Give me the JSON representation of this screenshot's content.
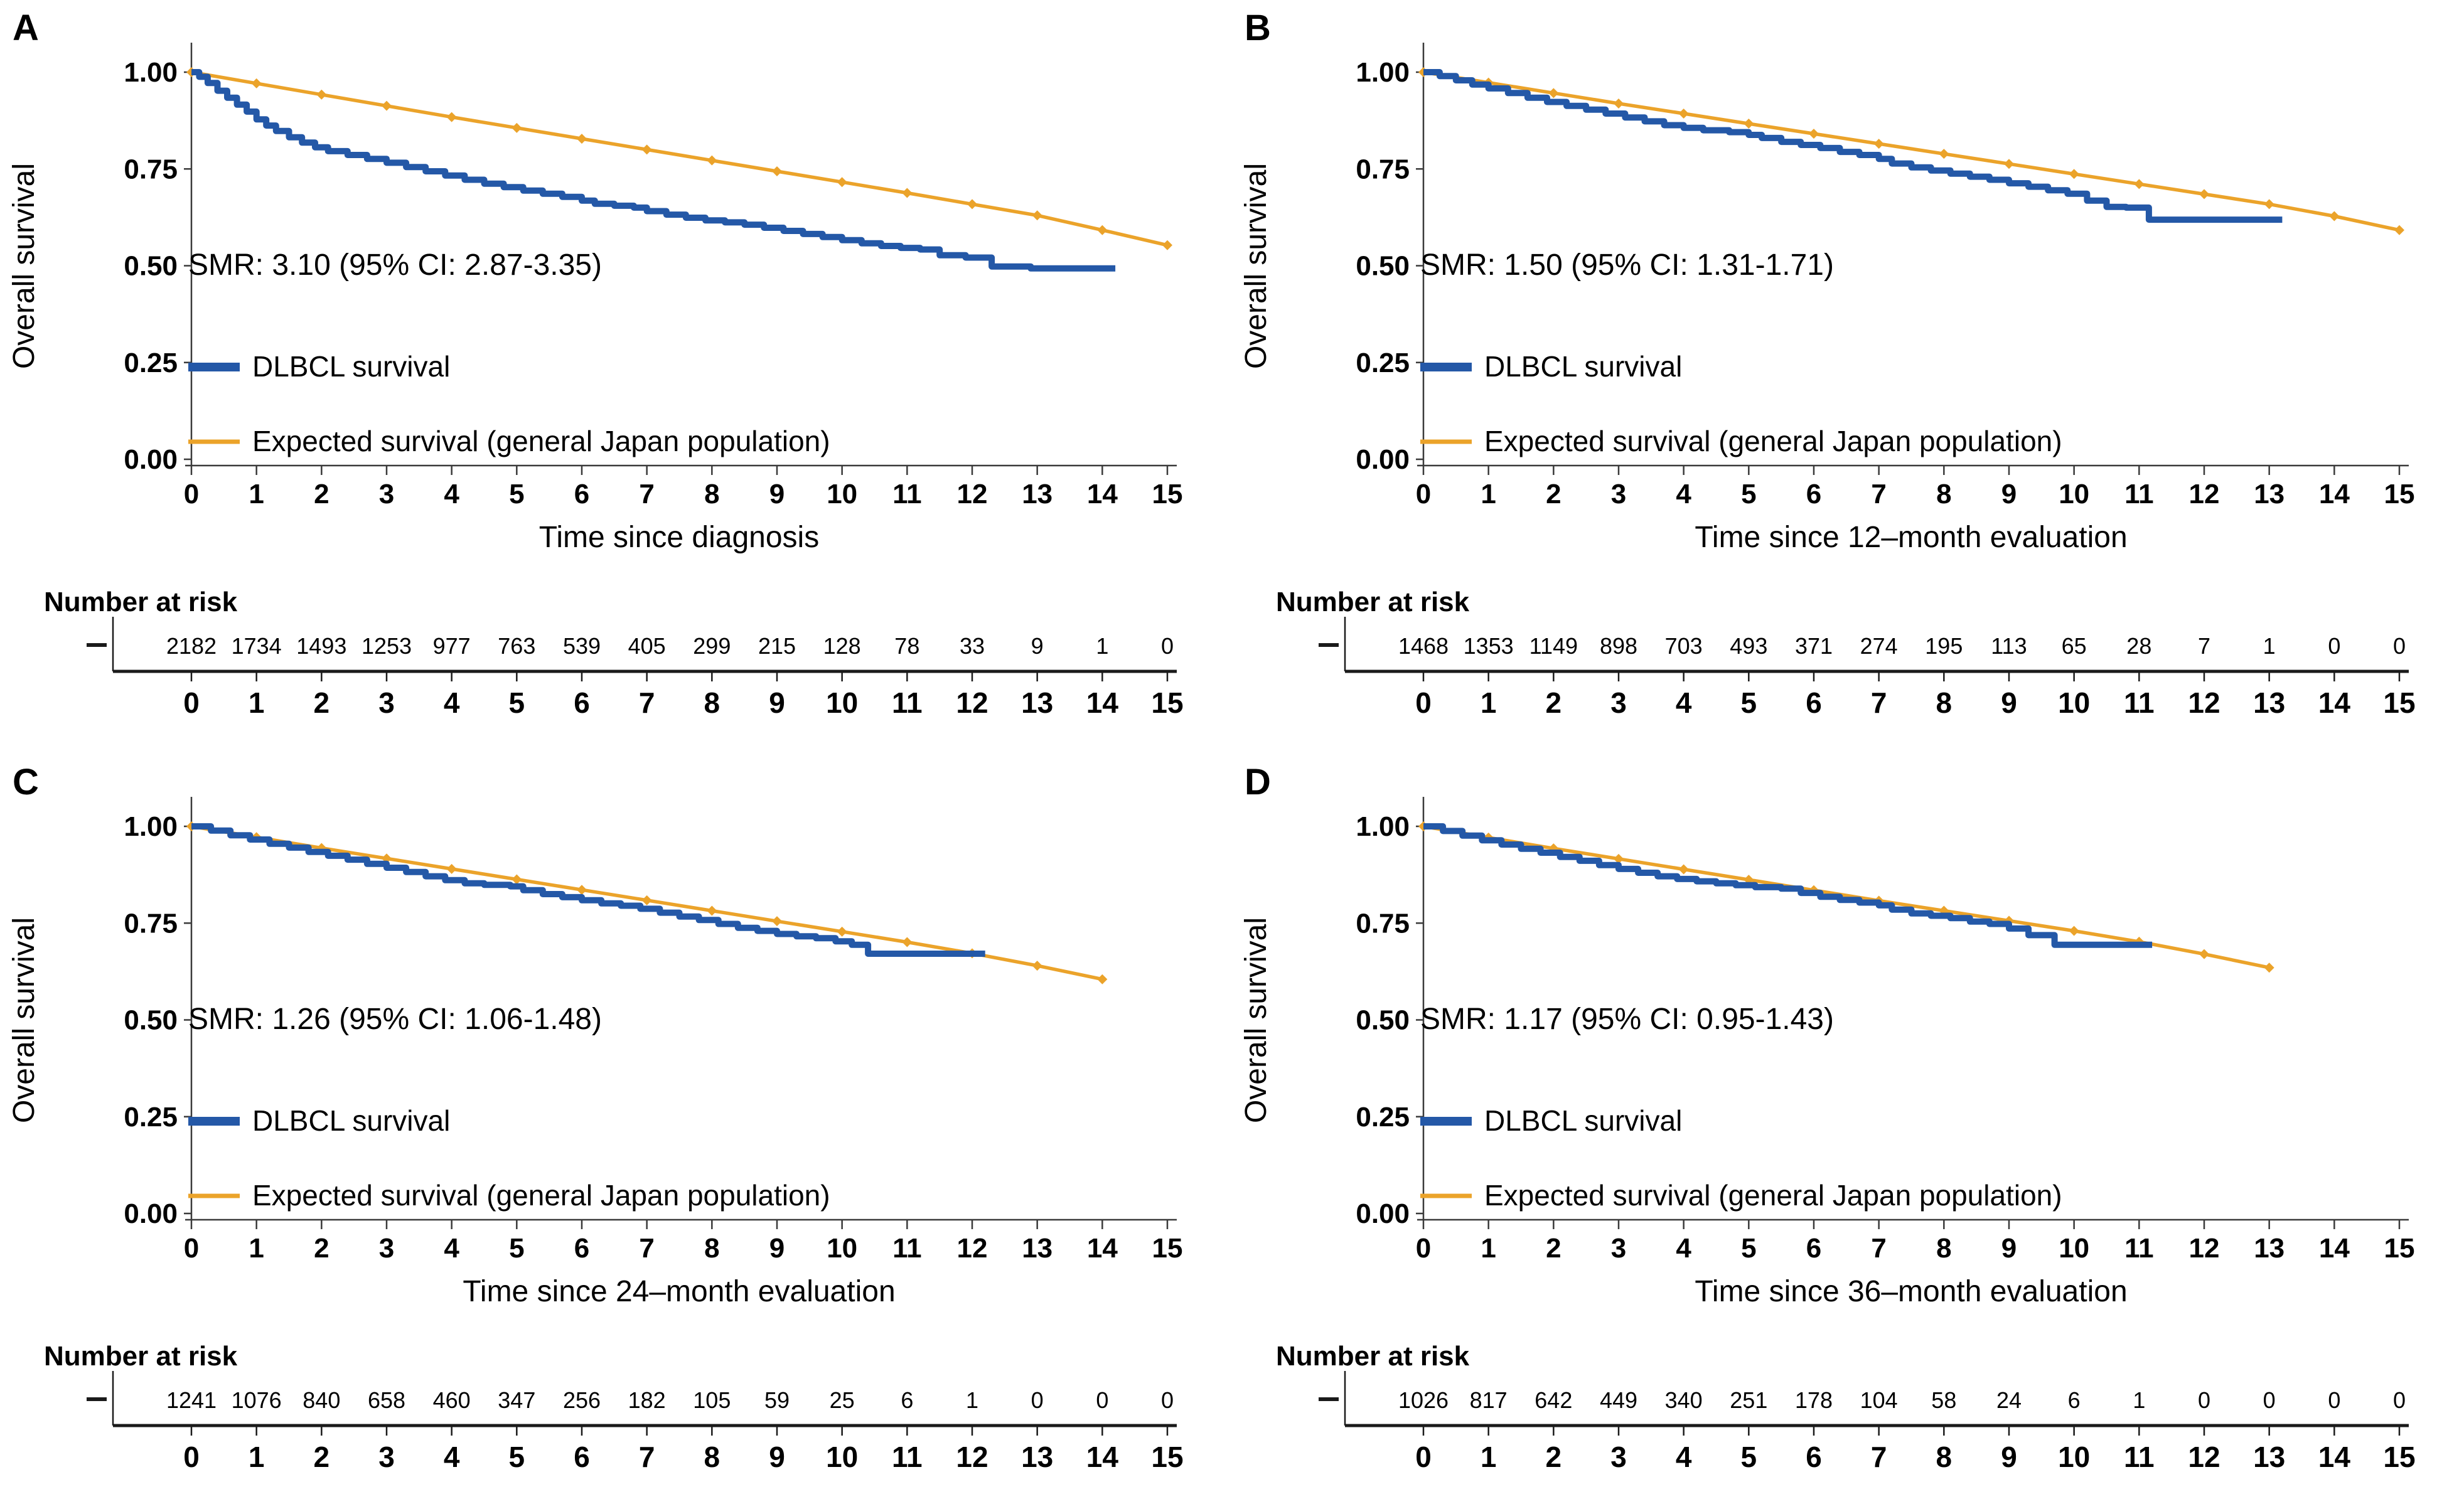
{
  "shared": {
    "ylabel": "Overall survival",
    "risk_header": "Number at risk",
    "legend": {
      "dlbcl": "DLBCL survival",
      "expected": "Expected survival (general Japan population)"
    },
    "y_tick_labels": [
      "1.00",
      "0.75",
      "0.50",
      "0.25",
      "0.00"
    ],
    "y_tick_values": [
      1.0,
      0.75,
      0.5,
      0.25,
      0.0
    ],
    "x_tick_labels": [
      "0",
      "1",
      "2",
      "3",
      "4",
      "5",
      "6",
      "7",
      "8",
      "9",
      "10",
      "11",
      "12",
      "13",
      "14",
      "15"
    ],
    "colors": {
      "dlbcl": "#2458A7",
      "expected": "#EBA32A",
      "panel_letter": "#1E4077",
      "axis": "#3a3a3a",
      "risk_line": "#1a1a1a"
    }
  },
  "chart_data": [
    {
      "type": "line",
      "letter": "A",
      "smr": "SMR: 3.10 (95% CI: 2.87-3.35)",
      "xlabel": "Time since diagnosis",
      "xlim": [
        0,
        15
      ],
      "ylim": [
        0,
        1
      ],
      "grid": false,
      "legend_position": "inside lower-left",
      "number_at_risk": [
        "2182",
        "1734",
        "1493",
        "1253",
        "977",
        "763",
        "539",
        "405",
        "299",
        "215",
        "128",
        "78",
        "33",
        "9",
        "1",
        "0"
      ],
      "series": [
        {
          "name": "DLBCL survival",
          "style": "step",
          "color_key": "dlbcl",
          "points": [
            [
              0,
              1.0
            ],
            [
              0.12,
              0.988
            ],
            [
              0.25,
              0.972
            ],
            [
              0.4,
              0.952
            ],
            [
              0.55,
              0.934
            ],
            [
              0.7,
              0.916
            ],
            [
              0.85,
              0.898
            ],
            [
              1.0,
              0.878
            ],
            [
              1.15,
              0.862
            ],
            [
              1.3,
              0.848
            ],
            [
              1.5,
              0.832
            ],
            [
              1.7,
              0.818
            ],
            [
              1.9,
              0.806
            ],
            [
              2.1,
              0.796
            ],
            [
              2.4,
              0.786
            ],
            [
              2.7,
              0.776
            ],
            [
              3.0,
              0.766
            ],
            [
              3.3,
              0.755
            ],
            [
              3.6,
              0.744
            ],
            [
              3.9,
              0.733
            ],
            [
              4.2,
              0.722
            ],
            [
              4.5,
              0.712
            ],
            [
              4.8,
              0.703
            ],
            [
              5.1,
              0.694
            ],
            [
              5.4,
              0.686
            ],
            [
              5.7,
              0.678
            ],
            [
              6.0,
              0.668
            ],
            [
              6.2,
              0.66
            ],
            [
              6.5,
              0.655
            ],
            [
              6.8,
              0.65
            ],
            [
              7.0,
              0.641
            ],
            [
              7.3,
              0.632
            ],
            [
              7.6,
              0.624
            ],
            [
              7.9,
              0.617
            ],
            [
              8.2,
              0.612
            ],
            [
              8.5,
              0.606
            ],
            [
              8.8,
              0.598
            ],
            [
              9.1,
              0.59
            ],
            [
              9.4,
              0.582
            ],
            [
              9.7,
              0.574
            ],
            [
              10.0,
              0.566
            ],
            [
              10.3,
              0.558
            ],
            [
              10.6,
              0.551
            ],
            [
              10.9,
              0.546
            ],
            [
              11.2,
              0.542
            ],
            [
              11.5,
              0.527
            ],
            [
              11.9,
              0.521
            ],
            [
              12.3,
              0.498
            ],
            [
              12.9,
              0.493
            ],
            [
              14.2,
              0.493
            ]
          ]
        },
        {
          "name": "Expected survival (general Japan population)",
          "style": "line-markers",
          "color_key": "expected",
          "points": [
            [
              0,
              1.0
            ],
            [
              1,
              0.971
            ],
            [
              2,
              0.942
            ],
            [
              3,
              0.913
            ],
            [
              4,
              0.884
            ],
            [
              5,
              0.856
            ],
            [
              6,
              0.828
            ],
            [
              7,
              0.8
            ],
            [
              8,
              0.772
            ],
            [
              9,
              0.744
            ],
            [
              10,
              0.716
            ],
            [
              11,
              0.688
            ],
            [
              12,
              0.659
            ],
            [
              13,
              0.63
            ],
            [
              14,
              0.592
            ],
            [
              15,
              0.553
            ]
          ]
        }
      ]
    },
    {
      "type": "line",
      "letter": "B",
      "smr": "SMR: 1.50 (95% CI: 1.31-1.71)",
      "xlabel": "Time since 12–month evaluation",
      "xlim": [
        0,
        15
      ],
      "ylim": [
        0,
        1
      ],
      "grid": false,
      "legend_position": "inside lower-left",
      "number_at_risk": [
        "1468",
        "1353",
        "1149",
        "898",
        "703",
        "493",
        "371",
        "274",
        "195",
        "113",
        "65",
        "28",
        "7",
        "1",
        "0",
        "0"
      ],
      "series": [
        {
          "name": "DLBCL survival",
          "style": "step",
          "color_key": "dlbcl",
          "points": [
            [
              0,
              1.0
            ],
            [
              0.25,
              0.99
            ],
            [
              0.5,
              0.979
            ],
            [
              0.75,
              0.968
            ],
            [
              1.0,
              0.958
            ],
            [
              1.3,
              0.946
            ],
            [
              1.6,
              0.934
            ],
            [
              1.9,
              0.923
            ],
            [
              2.2,
              0.913
            ],
            [
              2.5,
              0.903
            ],
            [
              2.8,
              0.893
            ],
            [
              3.1,
              0.883
            ],
            [
              3.4,
              0.873
            ],
            [
              3.7,
              0.863
            ],
            [
              4.0,
              0.856
            ],
            [
              4.3,
              0.85
            ],
            [
              4.7,
              0.845
            ],
            [
              5.0,
              0.838
            ],
            [
              5.2,
              0.83
            ],
            [
              5.5,
              0.82
            ],
            [
              5.8,
              0.812
            ],
            [
              6.1,
              0.804
            ],
            [
              6.4,
              0.794
            ],
            [
              6.7,
              0.786
            ],
            [
              7.0,
              0.776
            ],
            [
              7.2,
              0.764
            ],
            [
              7.5,
              0.754
            ],
            [
              7.8,
              0.746
            ],
            [
              8.1,
              0.738
            ],
            [
              8.4,
              0.73
            ],
            [
              8.7,
              0.722
            ],
            [
              9.0,
              0.713
            ],
            [
              9.3,
              0.704
            ],
            [
              9.6,
              0.695
            ],
            [
              9.9,
              0.686
            ],
            [
              10.2,
              0.668
            ],
            [
              10.5,
              0.652
            ],
            [
              10.8,
              0.65
            ],
            [
              11.15,
              0.619
            ],
            [
              13.2,
              0.619
            ]
          ]
        },
        {
          "name": "Expected survival (general Japan population)",
          "style": "line-markers",
          "color_key": "expected",
          "points": [
            [
              0,
              1.0
            ],
            [
              1,
              0.973
            ],
            [
              2,
              0.946
            ],
            [
              3,
              0.919
            ],
            [
              4,
              0.893
            ],
            [
              5,
              0.867
            ],
            [
              6,
              0.841
            ],
            [
              7,
              0.815
            ],
            [
              8,
              0.789
            ],
            [
              9,
              0.763
            ],
            [
              10,
              0.737
            ],
            [
              11,
              0.711
            ],
            [
              12,
              0.685
            ],
            [
              13,
              0.659
            ],
            [
              14,
              0.628
            ],
            [
              15,
              0.592
            ]
          ]
        }
      ]
    },
    {
      "type": "line",
      "letter": "C",
      "smr": "SMR: 1.26 (95% CI: 1.06-1.48)",
      "xlabel": "Time since 24–month evaluation",
      "xlim": [
        0,
        15
      ],
      "ylim": [
        0,
        1
      ],
      "grid": false,
      "legend_position": "inside lower-left",
      "number_at_risk": [
        "1241",
        "1076",
        "840",
        "658",
        "460",
        "347",
        "256",
        "182",
        "105",
        "59",
        "25",
        "6",
        "1",
        "0",
        "0",
        "0"
      ],
      "series": [
        {
          "name": "DLBCL survival",
          "style": "step",
          "color_key": "dlbcl",
          "points": [
            [
              0,
              1.0
            ],
            [
              0.3,
              0.989
            ],
            [
              0.6,
              0.977
            ],
            [
              0.9,
              0.966
            ],
            [
              1.2,
              0.955
            ],
            [
              1.5,
              0.945
            ],
            [
              1.8,
              0.934
            ],
            [
              2.1,
              0.924
            ],
            [
              2.4,
              0.914
            ],
            [
              2.7,
              0.903
            ],
            [
              3.0,
              0.893
            ],
            [
              3.3,
              0.882
            ],
            [
              3.6,
              0.871
            ],
            [
              3.9,
              0.861
            ],
            [
              4.2,
              0.853
            ],
            [
              4.5,
              0.849
            ],
            [
              4.9,
              0.845
            ],
            [
              5.1,
              0.835
            ],
            [
              5.4,
              0.825
            ],
            [
              5.7,
              0.817
            ],
            [
              6.0,
              0.809
            ],
            [
              6.3,
              0.801
            ],
            [
              6.6,
              0.795
            ],
            [
              6.9,
              0.787
            ],
            [
              7.2,
              0.777
            ],
            [
              7.5,
              0.767
            ],
            [
              7.8,
              0.758
            ],
            [
              8.1,
              0.748
            ],
            [
              8.4,
              0.738
            ],
            [
              8.7,
              0.73
            ],
            [
              9.0,
              0.722
            ],
            [
              9.3,
              0.716
            ],
            [
              9.6,
              0.711
            ],
            [
              9.9,
              0.703
            ],
            [
              10.15,
              0.694
            ],
            [
              10.4,
              0.671
            ],
            [
              12.2,
              0.671
            ]
          ]
        },
        {
          "name": "Expected survival (general Japan population)",
          "style": "line-markers",
          "color_key": "expected",
          "points": [
            [
              0,
              1.0
            ],
            [
              1,
              0.972
            ],
            [
              2,
              0.944
            ],
            [
              3,
              0.917
            ],
            [
              4,
              0.89
            ],
            [
              5,
              0.863
            ],
            [
              6,
              0.836
            ],
            [
              7,
              0.809
            ],
            [
              8,
              0.782
            ],
            [
              9,
              0.755
            ],
            [
              10,
              0.728
            ],
            [
              11,
              0.701
            ],
            [
              12,
              0.672
            ],
            [
              13,
              0.64
            ],
            [
              14,
              0.605
            ]
          ]
        }
      ]
    },
    {
      "type": "line",
      "letter": "D",
      "smr": "SMR: 1.17 (95% CI: 0.95-1.43)",
      "xlabel": "Time since 36–month evaluation",
      "xlim": [
        0,
        15
      ],
      "ylim": [
        0,
        1
      ],
      "grid": false,
      "legend_position": "inside lower-left",
      "number_at_risk": [
        "1026",
        "817",
        "642",
        "449",
        "340",
        "251",
        "178",
        "104",
        "58",
        "24",
        "6",
        "1",
        "0",
        "0",
        "0",
        "0"
      ],
      "series": [
        {
          "name": "DLBCL survival",
          "style": "step",
          "color_key": "dlbcl",
          "points": [
            [
              0,
              1.0
            ],
            [
              0.3,
              0.988
            ],
            [
              0.6,
              0.976
            ],
            [
              0.9,
              0.964
            ],
            [
              1.2,
              0.953
            ],
            [
              1.5,
              0.942
            ],
            [
              1.8,
              0.932
            ],
            [
              2.1,
              0.921
            ],
            [
              2.4,
              0.911
            ],
            [
              2.7,
              0.9
            ],
            [
              3.0,
              0.89
            ],
            [
              3.3,
              0.88
            ],
            [
              3.6,
              0.871
            ],
            [
              3.9,
              0.864
            ],
            [
              4.2,
              0.858
            ],
            [
              4.5,
              0.853
            ],
            [
              4.8,
              0.848
            ],
            [
              5.1,
              0.843
            ],
            [
              5.5,
              0.839
            ],
            [
              5.8,
              0.828
            ],
            [
              6.1,
              0.818
            ],
            [
              6.4,
              0.81
            ],
            [
              6.7,
              0.803
            ],
            [
              7.0,
              0.796
            ],
            [
              7.2,
              0.785
            ],
            [
              7.5,
              0.775
            ],
            [
              7.8,
              0.769
            ],
            [
              8.1,
              0.763
            ],
            [
              8.4,
              0.754
            ],
            [
              8.7,
              0.748
            ],
            [
              9.0,
              0.736
            ],
            [
              9.3,
              0.719
            ],
            [
              9.7,
              0.694
            ],
            [
              11.2,
              0.694
            ]
          ]
        },
        {
          "name": "Expected survival (general Japan population)",
          "style": "line-markers",
          "color_key": "expected",
          "points": [
            [
              0,
              1.0
            ],
            [
              1,
              0.971
            ],
            [
              2,
              0.943
            ],
            [
              3,
              0.916
            ],
            [
              4,
              0.889
            ],
            [
              5,
              0.862
            ],
            [
              6,
              0.835
            ],
            [
              7,
              0.808
            ],
            [
              8,
              0.782
            ],
            [
              9,
              0.756
            ],
            [
              10,
              0.73
            ],
            [
              11,
              0.702
            ],
            [
              12,
              0.67
            ],
            [
              13,
              0.635
            ]
          ]
        }
      ]
    }
  ]
}
